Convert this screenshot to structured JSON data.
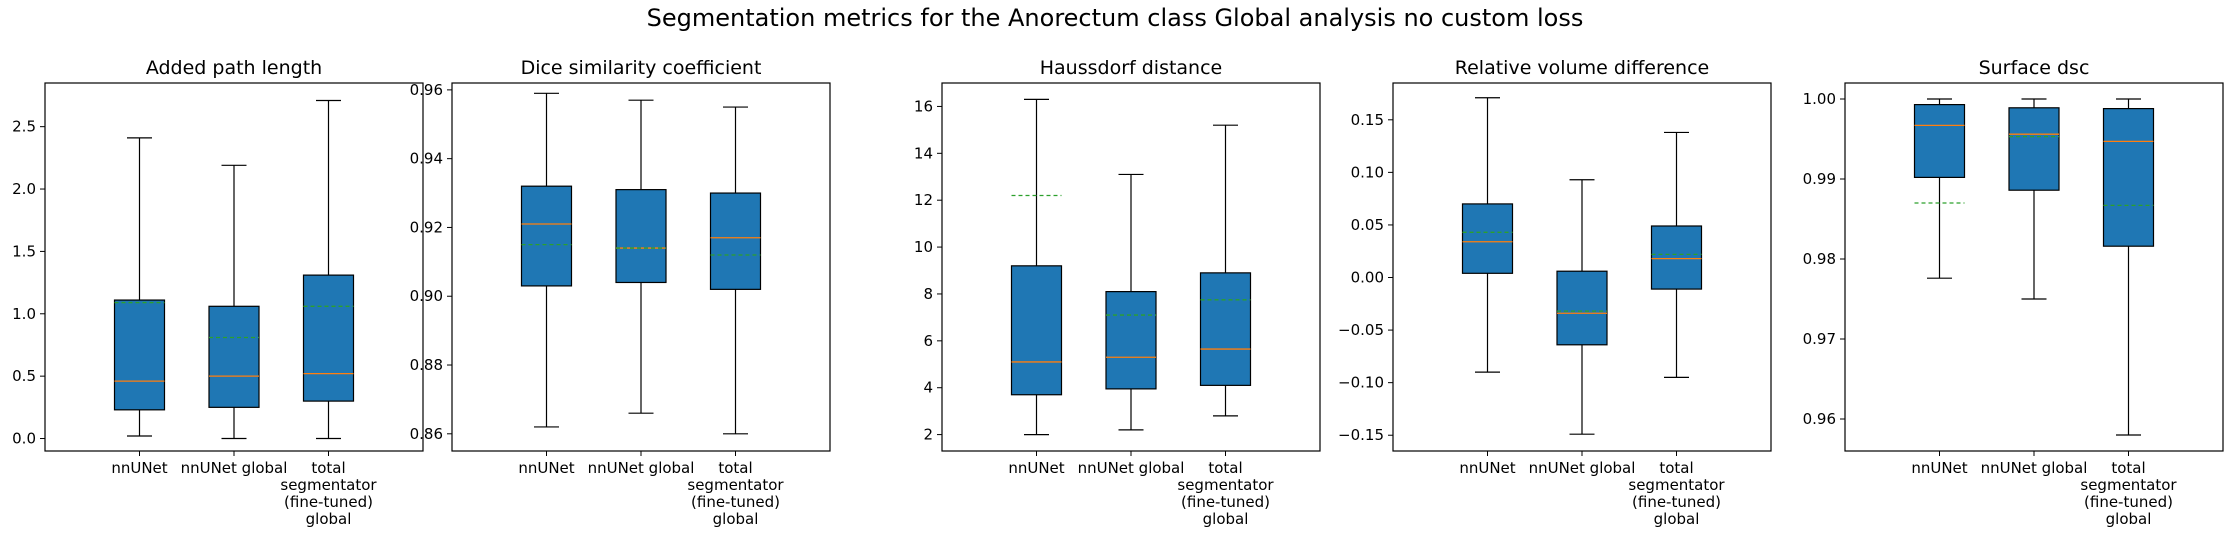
{
  "suptitle": "Segmentation metrics for the Anorectum class Global analysis no custom loss",
  "colors": {
    "box_fill": "#1f77b4",
    "median": "#ff7f0e",
    "mean": "#2ca02c",
    "line": "#000000"
  },
  "chart_data": [
    {
      "type": "box",
      "title": "Added path length",
      "categories": [
        "nnUNet",
        "nnUNet global",
        "total segmentator (fine-tuned) global"
      ],
      "ylim": [
        -0.1,
        2.85
      ],
      "yticks": [
        0.0,
        0.5,
        1.0,
        1.5,
        2.0,
        2.5
      ],
      "ytick_labels": [
        "0.0",
        "0.5",
        "1.0",
        "1.5",
        "2.0",
        "2.5"
      ],
      "boxes": [
        {
          "whisker_low": 0.02,
          "q1": 0.23,
          "median": 0.46,
          "q3": 1.11,
          "whisker_high": 2.41,
          "mean": 1.09
        },
        {
          "whisker_low": 0.0,
          "q1": 0.25,
          "median": 0.5,
          "q3": 1.06,
          "whisker_high": 2.19,
          "mean": 0.81
        },
        {
          "whisker_low": 0.0,
          "q1": 0.3,
          "median": 0.52,
          "q3": 1.31,
          "whisker_high": 2.71,
          "mean": 1.06
        }
      ]
    },
    {
      "type": "box",
      "title": "Dice similarity coefficient",
      "categories": [
        "nnUNet",
        "nnUNet global",
        "total segmentator (fine-tuned) global"
      ],
      "ylim": [
        0.855,
        0.962
      ],
      "yticks": [
        0.86,
        0.88,
        0.9,
        0.92,
        0.94,
        0.96
      ],
      "ytick_labels": [
        "0.86",
        "0.88",
        "0.90",
        "0.92",
        "0.94",
        "0.96"
      ],
      "boxes": [
        {
          "whisker_low": 0.862,
          "q1": 0.903,
          "median": 0.921,
          "q3": 0.932,
          "whisker_high": 0.959,
          "mean": 0.915
        },
        {
          "whisker_low": 0.866,
          "q1": 0.904,
          "median": 0.914,
          "q3": 0.931,
          "whisker_high": 0.957,
          "mean": 0.914
        },
        {
          "whisker_low": 0.86,
          "q1": 0.902,
          "median": 0.917,
          "q3": 0.93,
          "whisker_high": 0.955,
          "mean": 0.912
        }
      ]
    },
    {
      "type": "box",
      "title": "Haussdorf distance",
      "categories": [
        "nnUNet",
        "nnUNet global",
        "total segmentator (fine-tuned) global"
      ],
      "ylim": [
        1.3,
        17.0
      ],
      "yticks": [
        2,
        4,
        6,
        8,
        10,
        12,
        14,
        16
      ],
      "ytick_labels": [
        "2",
        "4",
        "6",
        "8",
        "10",
        "12",
        "14",
        "16"
      ],
      "boxes": [
        {
          "whisker_low": 2.0,
          "q1": 3.7,
          "median": 5.1,
          "q3": 9.2,
          "whisker_high": 16.3,
          "mean": 12.2
        },
        {
          "whisker_low": 2.2,
          "q1": 3.95,
          "median": 5.3,
          "q3": 8.1,
          "whisker_high": 13.1,
          "mean": 7.1
        },
        {
          "whisker_low": 2.8,
          "q1": 4.1,
          "median": 5.65,
          "q3": 8.9,
          "whisker_high": 15.2,
          "mean": 7.75
        }
      ]
    },
    {
      "type": "box",
      "title": "Relative volume difference",
      "categories": [
        "nnUNet",
        "nnUNet global",
        "total segmentator (fine-tuned) global"
      ],
      "ylim": [
        -0.165,
        0.185
      ],
      "yticks": [
        -0.15,
        -0.1,
        -0.05,
        0.0,
        0.05,
        0.1,
        0.15
      ],
      "ytick_labels": [
        "−0.15",
        "−0.10",
        "−0.05",
        "0.00",
        "0.05",
        "0.10",
        "0.15"
      ],
      "boxes": [
        {
          "whisker_low": -0.09,
          "q1": 0.004,
          "median": 0.034,
          "q3": 0.07,
          "whisker_high": 0.171,
          "mean": 0.043
        },
        {
          "whisker_low": -0.149,
          "q1": -0.064,
          "median": -0.034,
          "q3": 0.006,
          "whisker_high": 0.093,
          "mean": -0.032
        },
        {
          "whisker_low": -0.095,
          "q1": -0.011,
          "median": 0.018,
          "q3": 0.049,
          "whisker_high": 0.138,
          "mean": 0.022
        }
      ]
    },
    {
      "type": "box",
      "title": "Surface dsc",
      "categories": [
        "nnUNet",
        "nnUNet global",
        "total segmentator (fine-tuned) global"
      ],
      "ylim": [
        0.956,
        1.002
      ],
      "yticks": [
        0.96,
        0.97,
        0.98,
        0.99,
        1.0
      ],
      "ytick_labels": [
        "0.96",
        "0.97",
        "0.98",
        "0.99",
        "1.00"
      ],
      "boxes": [
        {
          "whisker_low": 0.9776,
          "q1": 0.9902,
          "median": 0.9967,
          "q3": 0.9993,
          "whisker_high": 1.0,
          "mean": 0.987
        },
        {
          "whisker_low": 0.975,
          "q1": 0.9886,
          "median": 0.9956,
          "q3": 0.9989,
          "whisker_high": 1.0,
          "mean": 0.9953
        },
        {
          "whisker_low": 0.958,
          "q1": 0.9816,
          "median": 0.9947,
          "q3": 0.9988,
          "whisker_high": 1.0,
          "mean": 0.9867
        }
      ]
    }
  ]
}
